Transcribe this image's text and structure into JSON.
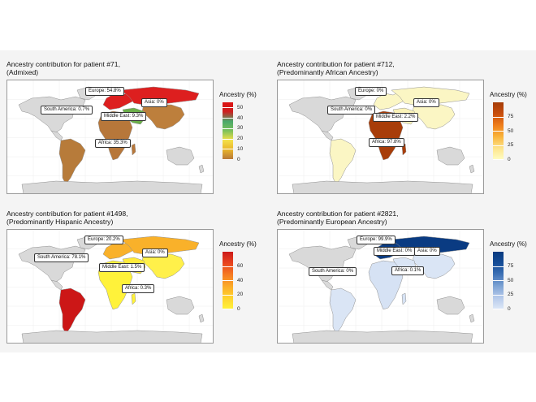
{
  "colors": {
    "land_default": "#d9d9d9",
    "ocean": "#ffffff",
    "border": "#9a9a9a"
  },
  "panels": [
    {
      "id": "p71",
      "title": "Ancestry contribution for patient #71,\n(Admixed)",
      "legend_title": "Ancestry (%)",
      "legend_ticks": [
        "50",
        "40",
        "30",
        "20",
        "10",
        "0"
      ],
      "scale_max": 55,
      "gradient": [
        "#b87a3a",
        "#e8b42a",
        "#f4e04a",
        "#7cc15a",
        "#4aa86b",
        "#cc2222",
        "#dd1111"
      ],
      "regions": {
        "europe": {
          "value": 54.8,
          "color": "#dd1f1f"
        },
        "asia": {
          "value": 0,
          "color": "#bd7f3c"
        },
        "middle_east": {
          "value": 9.3,
          "color": "#6aae49"
        },
        "south_america": {
          "value": 0.7,
          "color": "#b77b3a"
        },
        "africa": {
          "value": 35.3,
          "color": "#b7773a"
        }
      },
      "labels": [
        {
          "text": "Europe: 54.8%"
        },
        {
          "text": "Asia: 0%"
        },
        {
          "text": "South America: 0.7%"
        },
        {
          "text": "Middle East: 9.3%"
        },
        {
          "text": "Africa: 35.3%"
        }
      ]
    },
    {
      "id": "p712",
      "title": "Ancestry contribution for patient #712,\n(Predominantly African Ancestry)",
      "legend_title": "Ancestry (%)",
      "legend_ticks": [
        "75",
        "50",
        "25",
        "0"
      ],
      "scale_max": 100,
      "gradient": [
        "#fffcc0",
        "#fde38a",
        "#f9b33a",
        "#ee7d1a",
        "#c84e0d",
        "#a53c08"
      ],
      "regions": {
        "europe": {
          "value": 0,
          "color": "#fbf6c4"
        },
        "asia": {
          "value": 0,
          "color": "#fbf6c4"
        },
        "middle_east": {
          "value": 2.2,
          "color": "#fbf3b8"
        },
        "south_america": {
          "value": 0,
          "color": "#fbf6c4"
        },
        "africa": {
          "value": 97.8,
          "color": "#a83d09"
        }
      },
      "labels": [
        {
          "text": "Europe: 0%"
        },
        {
          "text": "Asia: 0%"
        },
        {
          "text": "South America: 0%"
        },
        {
          "text": "Middle East: 2.2%"
        },
        {
          "text": "Africa: 97.8%"
        }
      ]
    },
    {
      "id": "p1498",
      "title": "Ancestry contribution for patient #1498,\n(Predominantly Hispanic Ancestry)",
      "legend_title": "Ancestry (%)",
      "legend_ticks": [
        "60",
        "40",
        "20",
        "0"
      ],
      "scale_max": 80,
      "gradient": [
        "#fff23a",
        "#ffd22e",
        "#fbaa28",
        "#f57a22",
        "#e8431e",
        "#cc1a1a"
      ],
      "regions": {
        "europe": {
          "value": 20.2,
          "color": "#f9b12a"
        },
        "asia": {
          "value": 0,
          "color": "#fff04a"
        },
        "middle_east": {
          "value": 1.5,
          "color": "#ffea3a"
        },
        "south_america": {
          "value": 78.1,
          "color": "#cc1717"
        },
        "africa": {
          "value": 0.3,
          "color": "#fff23a"
        }
      },
      "labels": [
        {
          "text": "Europe: 20.2%"
        },
        {
          "text": "Asia: 0%"
        },
        {
          "text": "South America: 78.1%"
        },
        {
          "text": "Middle East: 1.5%"
        },
        {
          "text": "Africa: 0.3%"
        }
      ]
    },
    {
      "id": "p2821",
      "title": "Ancestry contribution for patient #2821,\n(Predominantly European Ancestry)",
      "legend_title": "Ancestry (%)",
      "legend_ticks": [
        "75",
        "50",
        "25",
        "0"
      ],
      "scale_max": 100,
      "gradient": [
        "#dbe6f6",
        "#b5c9ea",
        "#7da3d4",
        "#3f72b6",
        "#154c96",
        "#083a80"
      ],
      "regions": {
        "europe": {
          "value": 99.9,
          "color": "#0a3b82"
        },
        "asia": {
          "value": 0,
          "color": "#dae5f5"
        },
        "middle_east": {
          "value": 0,
          "color": "#dae5f5"
        },
        "south_america": {
          "value": 0,
          "color": "#dae5f5"
        },
        "africa": {
          "value": 0.1,
          "color": "#d6e2f4"
        }
      },
      "labels": [
        {
          "text": "Europe: 99.9%"
        },
        {
          "text": "Middle East: 0%"
        },
        {
          "text": "Asia: 0%"
        },
        {
          "text": "South America: 0%"
        },
        {
          "text": "Africa: 0.1%"
        }
      ]
    }
  ]
}
